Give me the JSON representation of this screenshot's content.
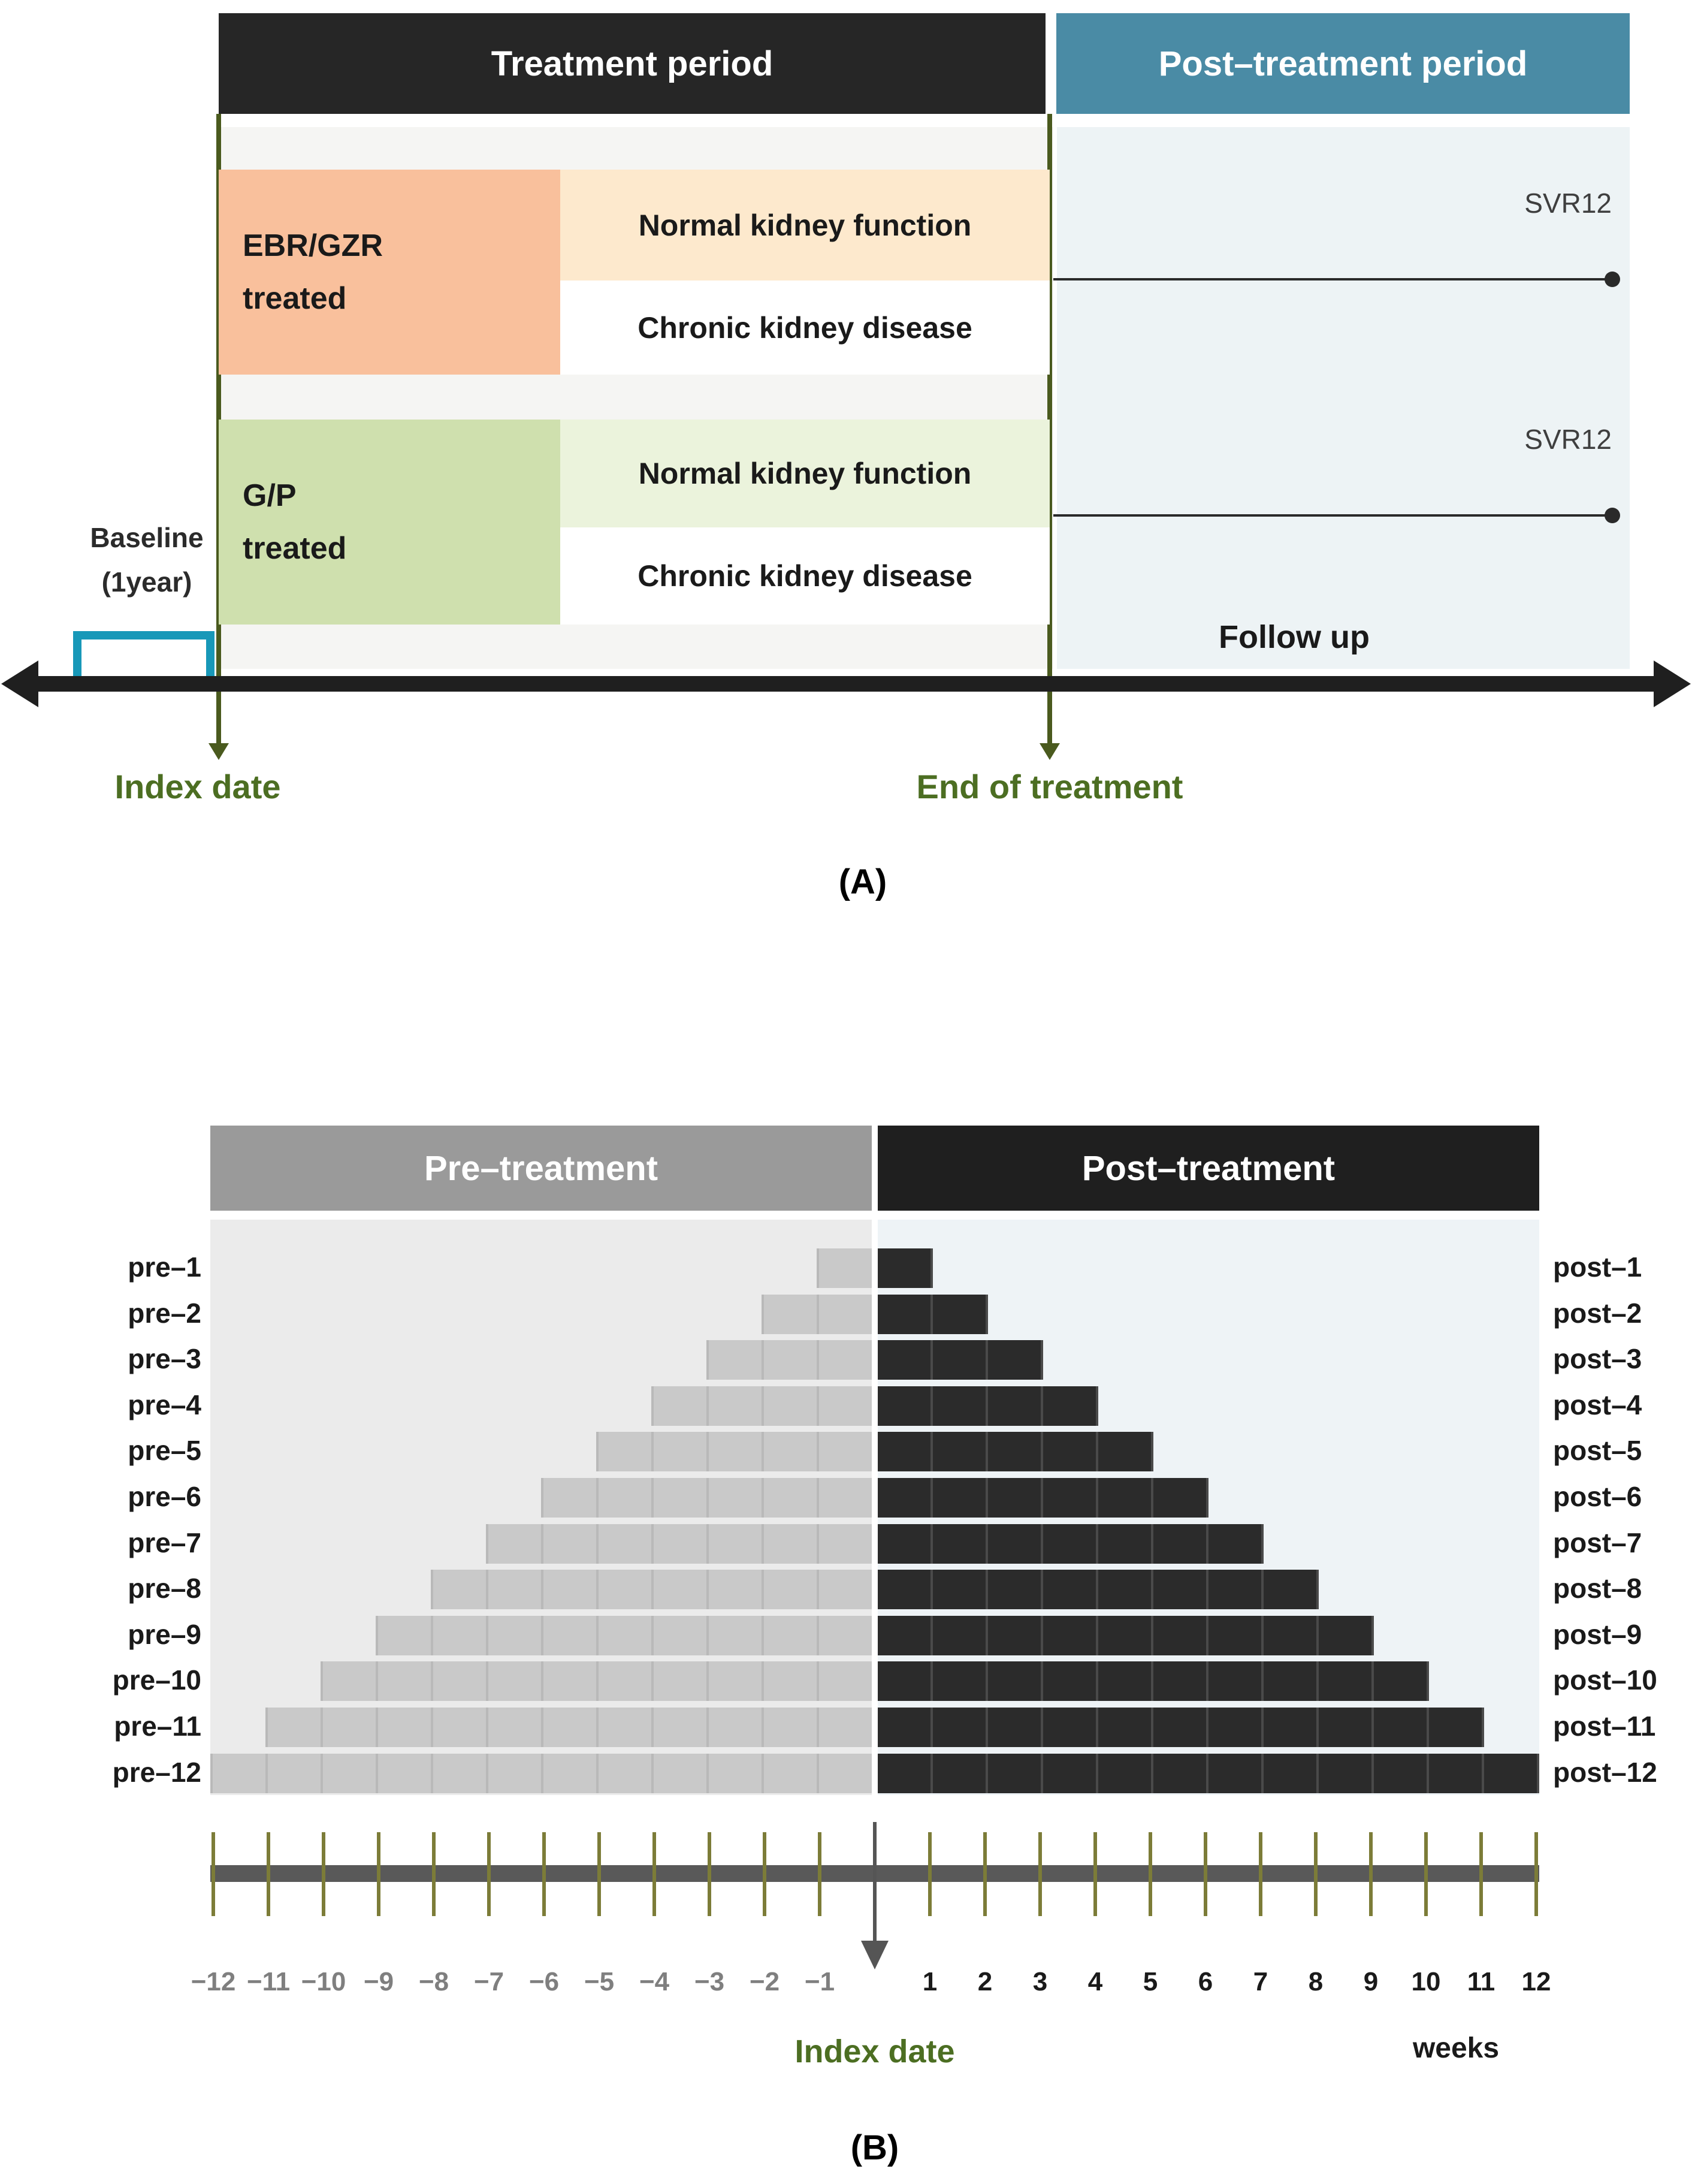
{
  "figure": {
    "panel_a": {
      "panel_label": "(A)",
      "treatment_header": "Treatment period",
      "post_treatment_header": "Post–treatment period",
      "groups": [
        {
          "name_line1": "EBR/GZR",
          "name_line2": "treated",
          "row_normal": "Normal kidney function",
          "row_ckd": "Chronic kidney disease",
          "svr_label": "SVR12"
        },
        {
          "name_line1": "G/P",
          "name_line2": "treated",
          "row_normal": "Normal kidney function",
          "row_ckd": "Chronic kidney disease",
          "svr_label": "SVR12"
        }
      ],
      "baseline_line1": "Baseline",
      "baseline_line2": "(1year)",
      "follow_up_label": "Follow up",
      "index_date_label": "Index date",
      "end_of_treatment_label": "End of treatment"
    },
    "panel_b": {
      "panel_label": "(B)",
      "pre_header": "Pre–treatment",
      "post_header": "Post–treatment",
      "index_date_label": "Index date",
      "weeks_label": "weeks"
    }
  },
  "chart_data": {
    "type": "bar",
    "subtype": "horizontal-pyramid",
    "title": "Pre-treatment vs Post-treatment observation windows",
    "categories_pre": [
      "pre–1",
      "pre–2",
      "pre–3",
      "pre–4",
      "pre–5",
      "pre–6",
      "pre–7",
      "pre–8",
      "pre–9",
      "pre–10",
      "pre–11",
      "pre–12"
    ],
    "categories_post": [
      "post–1",
      "post–2",
      "post–3",
      "post–4",
      "post–5",
      "post–6",
      "post–7",
      "post–8",
      "post–9",
      "post–10",
      "post–11",
      "post–12"
    ],
    "series": [
      {
        "name": "Pre–treatment",
        "direction": "left",
        "values_weeks": [
          1,
          2,
          3,
          4,
          5,
          6,
          7,
          8,
          9,
          10,
          11,
          12
        ]
      },
      {
        "name": "Post–treatment",
        "direction": "right",
        "values_weeks": [
          1,
          2,
          3,
          4,
          5,
          6,
          7,
          8,
          9,
          10,
          11,
          12
        ]
      }
    ],
    "x_axis": {
      "label": "weeks",
      "range": [
        -12,
        12
      ],
      "tick_labels_negative": [
        "−12",
        "−11",
        "−10",
        "−9",
        "−8",
        "−7",
        "−6",
        "−5",
        "−4",
        "−3",
        "−2",
        "−1"
      ],
      "tick_labels_positive": [
        "1",
        "2",
        "3",
        "4",
        "5",
        "6",
        "7",
        "8",
        "9",
        "10",
        "11",
        "12"
      ],
      "center_marker": "Index date"
    },
    "legend_position": "top-headers",
    "grid": "weekly separators inside bars"
  },
  "colors": {
    "header_black": "#262626",
    "header_teal": "#4a8ba5",
    "treatment_bg": "#f5f5f3",
    "post_bg": "#edf3f5",
    "ebr_box": "#f9c09c",
    "ebr_row": "#fde9cd",
    "gp_box": "#cfe0ae",
    "gp_row": "#ebf3dc",
    "white_row": "#ffffff",
    "green_line": "#4a5a1e",
    "green_text": "#4c6e22",
    "baseline_bracket": "#1898b8",
    "timeline_black": "#1f1f1f",
    "svr_line": "#2a2a2a",
    "pre_header_bg": "#9a9a9a",
    "post_header_bg": "#1f1f1f",
    "pre_plot_bg": "#ebebeb",
    "post_plot_bg": "#eef3f6",
    "pre_bar": "#c9c9c9",
    "post_bar": "#2b2b2b",
    "axis_bar": "#595959",
    "tick_olive": "#7c7c38",
    "neg_label": "#7f7f7f",
    "pos_label": "#1a1a1a",
    "index_arrow": "#555555"
  }
}
